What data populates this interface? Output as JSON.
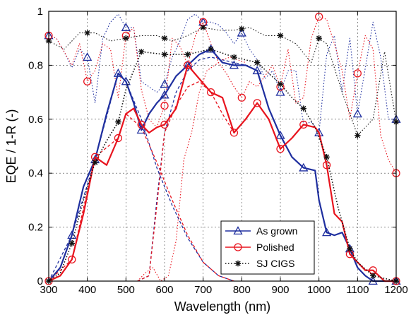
{
  "chart_data": {
    "type": "line",
    "xlabel": "Wavelength (nm)",
    "ylabel": "EQE / 1-R (-)",
    "xlim": [
      300,
      1200
    ],
    "ylim": [
      0,
      1
    ],
    "x_ticks": [
      "300",
      "400",
      "500",
      "600",
      "700",
      "800",
      "900",
      "1000",
      "1100",
      "1200"
    ],
    "y_ticks": [
      "0",
      "0.2",
      "0.4",
      "0.6",
      "0.8",
      "1"
    ],
    "grid": true,
    "legend_position": "bottom-center",
    "legend": [
      "As grown",
      "Polished",
      "SJ CIGS"
    ],
    "series": [
      {
        "name": "As grown",
        "role": "EQE",
        "color": "#1f2f9f",
        "style": "solid",
        "marker": "triangle",
        "x": [
          300,
          330,
          360,
          390,
          420,
          450,
          480,
          500,
          520,
          540,
          560,
          580,
          600,
          630,
          660,
          690,
          720,
          750,
          780,
          810,
          840,
          870,
          900,
          930,
          960,
          990,
          1000,
          1020,
          1040,
          1060,
          1080,
          1100,
          1120,
          1140,
          1170,
          1200
        ],
        "y": [
          0.0,
          0.05,
          0.17,
          0.35,
          0.45,
          0.62,
          0.77,
          0.74,
          0.66,
          0.56,
          0.62,
          0.66,
          0.69,
          0.76,
          0.8,
          0.84,
          0.86,
          0.81,
          0.8,
          0.8,
          0.78,
          0.64,
          0.54,
          0.46,
          0.42,
          0.41,
          0.3,
          0.18,
          0.17,
          0.18,
          0.12,
          0.05,
          0.02,
          0.0,
          0.0,
          0.0
        ],
        "marker_x": [
          360,
          420,
          480,
          500,
          540,
          600,
          660,
          720,
          780,
          840,
          900,
          960,
          1020,
          1080,
          1140,
          1200
        ]
      },
      {
        "name": "Polished",
        "role": "EQE",
        "color": "#e8141e",
        "style": "solid",
        "marker": "circle",
        "x": [
          300,
          330,
          360,
          390,
          420,
          450,
          480,
          500,
          520,
          540,
          560,
          580,
          600,
          630,
          660,
          690,
          720,
          750,
          780,
          810,
          840,
          870,
          900,
          930,
          960,
          990,
          1000,
          1020,
          1040,
          1060,
          1080,
          1100,
          1120,
          1140,
          1170,
          1200
        ],
        "y": [
          0.0,
          0.02,
          0.08,
          0.25,
          0.46,
          0.43,
          0.53,
          0.62,
          0.64,
          0.58,
          0.55,
          0.57,
          0.58,
          0.64,
          0.8,
          0.75,
          0.7,
          0.68,
          0.55,
          0.6,
          0.66,
          0.6,
          0.49,
          0.53,
          0.58,
          0.57,
          0.55,
          0.43,
          0.25,
          0.22,
          0.1,
          0.07,
          0.04,
          0.04,
          0.0,
          0.0
        ],
        "marker_x": [
          300,
          360,
          420,
          480,
          540,
          600,
          660,
          720,
          780,
          840,
          900,
          960,
          1020,
          1080,
          1140,
          1200
        ]
      },
      {
        "name": "SJ CIGS",
        "role": "EQE",
        "color": "#111111",
        "style": "dotted",
        "marker": "star",
        "x": [
          300,
          330,
          360,
          390,
          420,
          450,
          480,
          500,
          540,
          600,
          660,
          720,
          780,
          840,
          900,
          930,
          960,
          990,
          1020,
          1050,
          1080,
          1100,
          1140,
          1200
        ],
        "y": [
          0.0,
          0.03,
          0.14,
          0.3,
          0.44,
          0.52,
          0.59,
          0.71,
          0.85,
          0.84,
          0.84,
          0.86,
          0.83,
          0.81,
          0.73,
          0.68,
          0.64,
          0.57,
          0.46,
          0.27,
          0.12,
          0.07,
          0.02,
          0.0
        ],
        "marker_x": [
          300,
          360,
          420,
          480,
          540,
          600,
          660,
          720,
          780,
          840,
          900,
          960,
          1020,
          1080,
          1140,
          1200
        ]
      },
      {
        "name": "As grown 1-R",
        "role": "1-R",
        "color": "#1f2f9f",
        "style": "dotted",
        "marker": "triangle",
        "x": [
          300,
          320,
          340,
          360,
          380,
          400,
          420,
          440,
          460,
          480,
          500,
          520,
          540,
          560,
          580,
          600,
          620,
          640,
          660,
          680,
          700,
          720,
          740,
          760,
          780,
          800,
          820,
          840,
          860,
          880,
          900,
          920,
          940,
          960,
          980,
          1000,
          1020,
          1040,
          1060,
          1080,
          1100,
          1120,
          1140,
          1160,
          1180,
          1200
        ],
        "y": [
          0.91,
          0.9,
          0.85,
          0.79,
          0.86,
          0.83,
          0.66,
          0.9,
          0.96,
          0.99,
          0.94,
          0.94,
          0.74,
          0.72,
          0.7,
          0.73,
          0.83,
          0.89,
          0.97,
          0.99,
          0.96,
          0.96,
          0.95,
          0.92,
          0.88,
          0.92,
          0.86,
          0.82,
          0.75,
          0.78,
          0.7,
          0.78,
          0.78,
          0.58,
          0.59,
          0.55,
          0.84,
          0.91,
          0.7,
          0.9,
          0.62,
          0.79,
          0.96,
          0.83,
          0.6,
          0.6
        ],
        "marker_x": [
          300,
          400,
          500,
          600,
          700,
          800,
          900,
          1000,
          1100,
          1200
        ]
      },
      {
        "name": "Polished 1-R",
        "role": "1-R",
        "color": "#e8141e",
        "style": "dotted",
        "marker": "circle",
        "x": [
          300,
          320,
          340,
          360,
          380,
          400,
          420,
          440,
          460,
          480,
          500,
          520,
          540,
          560,
          580,
          600,
          620,
          640,
          660,
          680,
          700,
          720,
          740,
          760,
          780,
          800,
          820,
          840,
          860,
          880,
          900,
          920,
          940,
          960,
          980,
          1000,
          1020,
          1040,
          1060,
          1080,
          1100,
          1120,
          1140,
          1160,
          1180,
          1200
        ],
        "y": [
          0.91,
          0.9,
          0.85,
          0.8,
          0.88,
          0.74,
          0.78,
          0.88,
          0.86,
          0.68,
          0.91,
          0.94,
          0.71,
          0.6,
          0.57,
          0.65,
          0.9,
          0.87,
          0.8,
          0.91,
          0.96,
          0.88,
          0.81,
          0.77,
          0.72,
          0.68,
          0.74,
          0.72,
          0.76,
          0.8,
          0.72,
          0.86,
          0.66,
          0.68,
          0.9,
          0.98,
          0.97,
          0.88,
          0.78,
          0.6,
          0.77,
          0.91,
          0.86,
          0.54,
          0.45,
          0.4
        ],
        "marker_x": [
          300,
          400,
          500,
          600,
          700,
          800,
          900,
          1000,
          1100,
          1200
        ]
      },
      {
        "name": "SJ CIGS 1-R",
        "role": "1-R",
        "color": "#111111",
        "style": "dotted",
        "marker": "star",
        "x": [
          300,
          340,
          380,
          420,
          460,
          500,
          540,
          580,
          620,
          660,
          700,
          740,
          780,
          820,
          860,
          900,
          940,
          980,
          1000,
          1020,
          1060,
          1100,
          1140,
          1170,
          1200
        ],
        "y": [
          0.89,
          0.86,
          0.92,
          0.92,
          0.89,
          0.9,
          0.91,
          0.91,
          0.89,
          0.91,
          0.94,
          0.93,
          0.93,
          0.94,
          0.91,
          0.91,
          0.88,
          0.81,
          0.9,
          0.88,
          0.7,
          0.54,
          0.6,
          0.85,
          0.59
        ],
        "marker_x": [
          300,
          400,
          500,
          600,
          700,
          800,
          900,
          1000,
          1100,
          1200
        ]
      },
      {
        "name": "As grown top",
        "role": "transmission",
        "color": "#1f2f9f",
        "style": "dashed",
        "marker": "none",
        "x": [
          300,
          360,
          420,
          480,
          500,
          540,
          580,
          620,
          660,
          700,
          740,
          780
        ],
        "y": [
          0.0,
          0.17,
          0.45,
          0.77,
          0.74,
          0.6,
          0.42,
          0.28,
          0.16,
          0.07,
          0.02,
          0.0
        ]
      },
      {
        "name": "Polished top",
        "role": "transmission",
        "color": "#e8141e",
        "style": "dashed",
        "marker": "none",
        "x": [
          300,
          360,
          420,
          480,
          500,
          540,
          580,
          620,
          660,
          700,
          740,
          780
        ],
        "y": [
          0.0,
          0.08,
          0.46,
          0.53,
          0.62,
          0.57,
          0.44,
          0.3,
          0.17,
          0.07,
          0.02,
          0.0
        ]
      },
      {
        "name": "As grown bottom",
        "role": "transmission",
        "color": "#1f2f9f",
        "style": "dashed",
        "marker": "none",
        "x": [
          530,
          560,
          580,
          600,
          630,
          660,
          690,
          720,
          750,
          780,
          810
        ],
        "y": [
          0.0,
          0.02,
          0.3,
          0.55,
          0.7,
          0.78,
          0.82,
          0.83,
          0.82,
          0.81,
          0.8
        ]
      },
      {
        "name": "Polished bottom",
        "role": "transmission",
        "color": "#e8141e",
        "style": "dashed",
        "marker": "none",
        "x": [
          530,
          560,
          580,
          600,
          630,
          660,
          690,
          720,
          750,
          780,
          810
        ],
        "y": [
          0.0,
          0.02,
          0.28,
          0.55,
          0.65,
          0.72,
          0.74,
          0.7,
          0.62,
          0.55,
          0.6
        ]
      },
      {
        "name": "Polished onset",
        "role": "1-R",
        "color": "#e8141e",
        "style": "dotted",
        "marker": "none",
        "x": [
          530,
          550,
          570,
          590,
          610,
          630,
          650,
          670,
          690,
          710,
          730,
          750,
          770,
          790,
          810
        ],
        "y": [
          0.0,
          0.03,
          0.05,
          0.0,
          0.02,
          0.15,
          0.45,
          0.55,
          0.7,
          0.78,
          0.8,
          0.82,
          0.83,
          0.82,
          0.81
        ]
      }
    ]
  }
}
